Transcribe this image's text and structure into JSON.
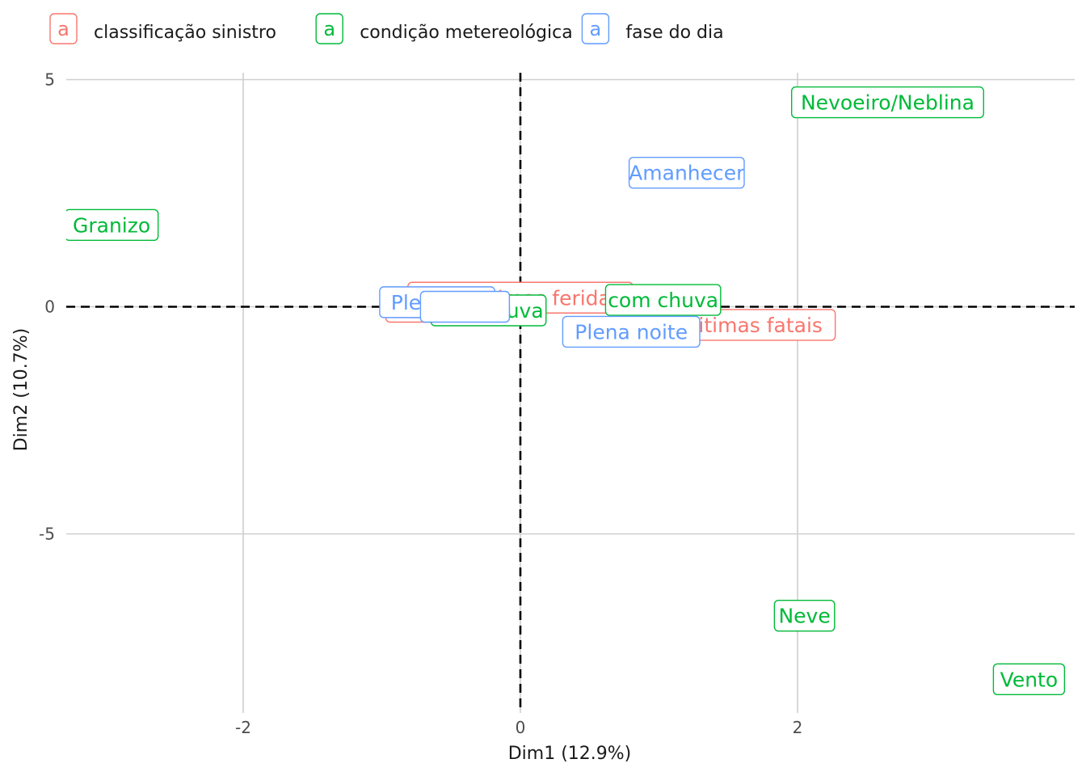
{
  "chart_data": {
    "type": "scatter",
    "xlabel": "Dim1 (12.9%)",
    "ylabel": "Dim2 (10.7%)",
    "xlim": [
      -3.3,
      4.0
    ],
    "ylim": [
      -8.9,
      5.2
    ],
    "x_ticks": [
      -2,
      0,
      2
    ],
    "y_ticks": [
      5,
      0,
      -5
    ],
    "x_tick_labels": [
      "-2",
      "0",
      "2"
    ],
    "y_tick_labels": [
      "5",
      "0",
      "-5"
    ],
    "grid": true,
    "reference_lines": {
      "x": 0,
      "y": 0,
      "style": "dashed"
    },
    "legend": {
      "position": "top-left",
      "key_glyph": "a",
      "entries": [
        {
          "name": "classificação sinistro",
          "color": "#F8766D"
        },
        {
          "name": "condição metereológica",
          "color": "#00BA38"
        },
        {
          "name": "fase do dia",
          "color": "#619CFF"
        }
      ]
    },
    "series": [
      {
        "name": "classificação sinistro",
        "color": "#F8766D",
        "points": [
          {
            "label": "",
            "x": -0.65,
            "y": 0.0
          },
          {
            "label": "",
            "x": -0.5,
            "y": 0.1
          },
          {
            "label": "Com vítimas feridas",
            "x": 0.0,
            "y": 0.2
          },
          {
            "label": "Com vitimas fatais",
            "x": 1.5,
            "y": -0.4
          }
        ]
      },
      {
        "name": "condição metereológica",
        "color": "#00BA38",
        "points": [
          {
            "label": "Nevoeiro/Neblina",
            "x": 2.65,
            "y": 4.5
          },
          {
            "label": "Granizo",
            "x": -2.95,
            "y": 1.8
          },
          {
            "label": "com chuva",
            "x": 1.03,
            "y": 0.15
          },
          {
            "label": "sem chuva",
            "x": -0.23,
            "y": -0.08
          },
          {
            "label": "Neve",
            "x": 2.05,
            "y": -6.8
          },
          {
            "label": "Vento",
            "x": 3.67,
            "y": -8.2
          }
        ]
      },
      {
        "name": "fase do dia",
        "color": "#619CFF",
        "points": [
          {
            "label": "Amanhecer",
            "x": 1.2,
            "y": 2.95
          },
          {
            "label": "Plena noite",
            "x": 0.8,
            "y": -0.55
          },
          {
            "label": "Pleno dia",
            "x": -0.6,
            "y": 0.1
          },
          {
            "label": "",
            "x": -0.4,
            "y": 0.0
          }
        ]
      }
    ]
  }
}
